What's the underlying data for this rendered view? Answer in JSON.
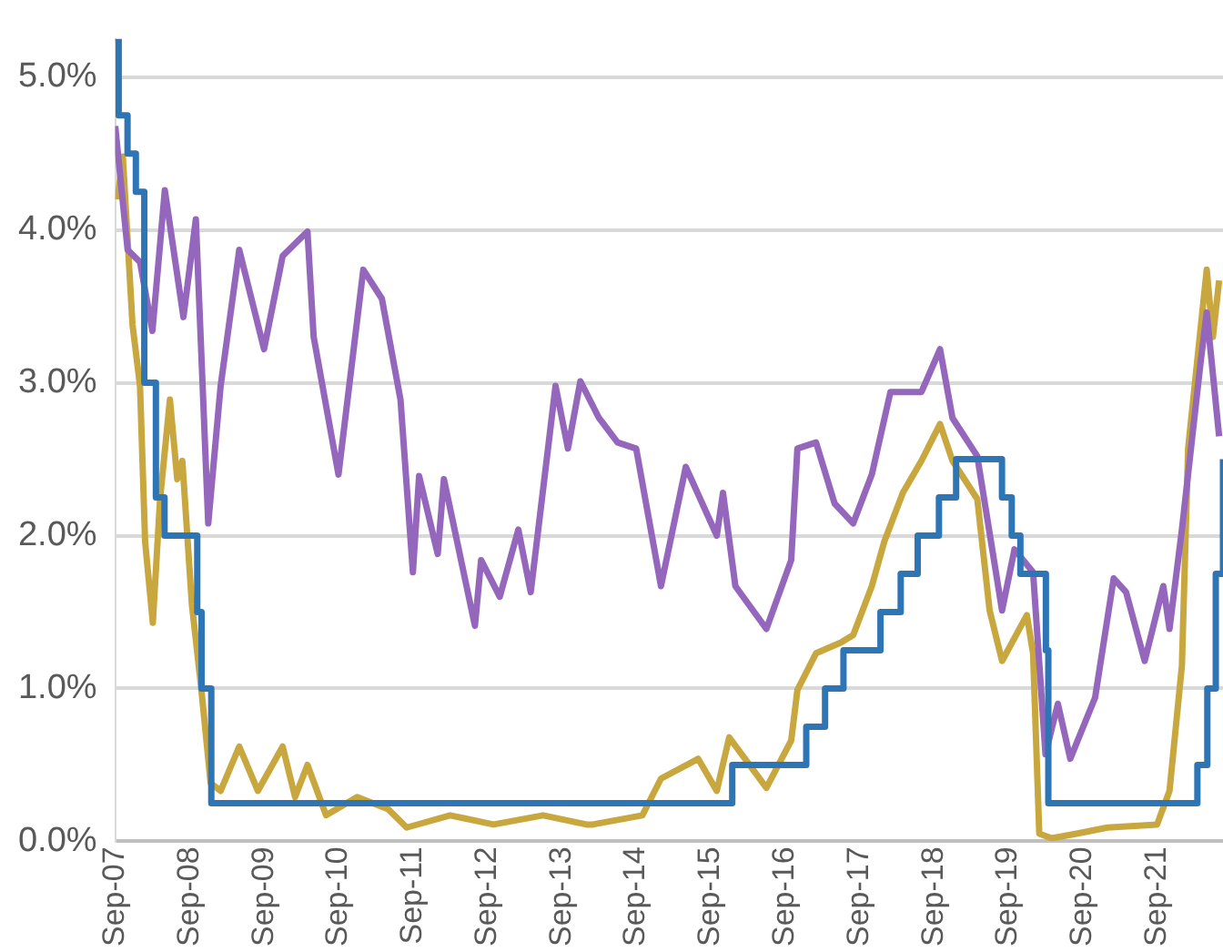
{
  "chart_data": {
    "type": "line",
    "grid": "y",
    "legend": false,
    "marker": "none",
    "line_style": "solid",
    "xlim": [
      "2007-09-01",
      "2022-07-20"
    ],
    "ylim": [
      0,
      5.25
    ],
    "xticks": [
      {
        "value": "2007-09",
        "label": "Sep-07"
      },
      {
        "value": "2008-09",
        "label": "Sep-08"
      },
      {
        "value": "2009-09",
        "label": "Sep-09"
      },
      {
        "value": "2010-09",
        "label": "Sep-10"
      },
      {
        "value": "2011-09",
        "label": "Sep-11"
      },
      {
        "value": "2012-09",
        "label": "Sep-12"
      },
      {
        "value": "2013-09",
        "label": "Sep-13"
      },
      {
        "value": "2014-09",
        "label": "Sep-14"
      },
      {
        "value": "2015-09",
        "label": "Sep-15"
      },
      {
        "value": "2016-09",
        "label": "Sep-16"
      },
      {
        "value": "2017-09",
        "label": "Sep-17"
      },
      {
        "value": "2018-09",
        "label": "Sep-18"
      },
      {
        "value": "2019-09",
        "label": "Sep-19"
      },
      {
        "value": "2020-09",
        "label": "Sep-20"
      },
      {
        "value": "2021-09",
        "label": "Sep-21"
      }
    ],
    "yticks": [
      {
        "value": 0,
        "label": "0.0%"
      },
      {
        "value": 1,
        "label": "1.0%"
      },
      {
        "value": 2,
        "label": "2.0%"
      },
      {
        "value": 3,
        "label": "3.0%"
      },
      {
        "value": 4,
        "label": "4.0%"
      },
      {
        "value": 5,
        "label": "5.0%"
      }
    ],
    "series": [
      {
        "type": "step",
        "color": "#2e75b6",
        "x": [
          "2007-09-01",
          "2007-09-18",
          "2007-10-31",
          "2007-12-11",
          "2008-01-22",
          "2008-03-18",
          "2008-04-30",
          "2008-10-08",
          "2008-10-29",
          "2008-12-16",
          "2015-12-16",
          "2016-12-14",
          "2017-03-15",
          "2017-06-14",
          "2017-12-13",
          "2018-03-21",
          "2018-06-13",
          "2018-09-26",
          "2018-12-19",
          "2019-07-31",
          "2019-09-18",
          "2019-10-30",
          "2020-03-03",
          "2020-03-15",
          "2022-03-16",
          "2022-05-04",
          "2022-06-15",
          "2022-07-20"
        ],
        "values": [
          5.25,
          4.75,
          4.5,
          4.25,
          3.0,
          2.25,
          2.0,
          1.5,
          1.0,
          0.25,
          0.5,
          0.75,
          1.0,
          1.25,
          1.5,
          1.75,
          2.0,
          2.25,
          2.5,
          2.25,
          2.0,
          1.75,
          1.25,
          0.25,
          0.5,
          1.0,
          1.75,
          2.5
        ]
      },
      {
        "type": "line",
        "color": "#9467bd",
        "x": [
          "2007-09",
          "2007-11",
          "2008-01",
          "2008-03",
          "2008-05",
          "2008-08",
          "2008-10",
          "2008-12",
          "2009-02",
          "2009-05",
          "2009-09",
          "2009-12",
          "2010-04",
          "2010-05",
          "2010-09",
          "2011-01",
          "2011-04",
          "2011-07",
          "2011-09",
          "2011-10",
          "2012-01",
          "2012-02",
          "2012-07",
          "2012-08",
          "2012-11",
          "2013-02",
          "2013-04",
          "2013-08",
          "2013-10",
          "2013-12",
          "2014-03",
          "2014-06",
          "2014-09",
          "2015-01",
          "2015-05",
          "2015-10",
          "2015-11",
          "2016-01",
          "2016-06",
          "2016-10",
          "2016-11",
          "2017-02",
          "2017-05",
          "2017-08",
          "2017-11",
          "2018-02",
          "2018-07",
          "2018-10",
          "2018-12",
          "2019-04",
          "2019-08",
          "2019-10",
          "2020-01",
          "2020-03",
          "2020-05",
          "2020-07",
          "2020-11",
          "2021-02",
          "2021-04",
          "2021-07",
          "2021-10",
          "2021-11",
          "2022-01",
          "2022-04",
          "2022-05",
          "2022-07"
        ],
        "values": [
          4.68,
          3.87,
          3.79,
          3.34,
          4.26,
          3.43,
          4.07,
          2.08,
          2.98,
          3.87,
          3.22,
          3.83,
          3.99,
          3.3,
          2.4,
          3.74,
          3.55,
          2.89,
          1.76,
          2.39,
          1.88,
          2.37,
          1.41,
          1.84,
          1.6,
          2.04,
          1.63,
          2.98,
          2.57,
          3.01,
          2.77,
          2.61,
          2.57,
          1.67,
          2.45,
          2.0,
          2.28,
          1.67,
          1.39,
          1.84,
          2.57,
          2.61,
          2.21,
          2.08,
          2.4,
          2.94,
          2.94,
          3.22,
          2.77,
          2.52,
          1.51,
          1.91,
          1.76,
          0.57,
          0.9,
          0.54,
          0.94,
          1.72,
          1.63,
          1.18,
          1.67,
          1.39,
          2.04,
          3.13,
          3.46,
          2.65
        ]
      },
      {
        "type": "line",
        "color": "#c9a73f",
        "x": [
          "2007-09-12",
          "2007-10-08",
          "2007-11-25",
          "2008-01-01",
          "2008-01-26",
          "2008-03-03",
          "2008-04-08",
          "2008-05-26",
          "2008-07-01",
          "2008-07-26",
          "2008-09-12",
          "2008-10-26",
          "2008-12-13",
          "2009-02",
          "2009-05",
          "2009-08",
          "2009-12",
          "2010-02",
          "2010-04",
          "2010-07",
          "2010-12",
          "2011-05",
          "2011-08",
          "2012-03",
          "2012-10",
          "2013-06",
          "2014-01",
          "2014-02",
          "2014-10",
          "2015-01",
          "2015-07",
          "2015-10",
          "2015-12",
          "2016-06",
          "2016-10",
          "2016-11",
          "2017-02",
          "2017-06",
          "2017-08",
          "2017-11",
          "2018-01",
          "2018-04",
          "2018-07",
          "2018-10",
          "2018-12",
          "2019-04",
          "2019-06",
          "2019-08",
          "2019-12",
          "2020-01",
          "2020-02",
          "2020-04",
          "2020-08",
          "2021-01",
          "2021-09",
          "2021-11",
          "2022-01",
          "2022-02",
          "2022-05",
          "2022-06",
          "2022-07"
        ],
        "values": [
          4.2,
          4.48,
          3.38,
          2.98,
          1.96,
          1.43,
          2.24,
          2.89,
          2.37,
          2.49,
          1.55,
          1.02,
          0.38,
          0.33,
          0.62,
          0.33,
          0.62,
          0.29,
          0.5,
          0.17,
          0.29,
          0.21,
          0.09,
          0.17,
          0.11,
          0.17,
          0.11,
          0.11,
          0.17,
          0.41,
          0.54,
          0.33,
          0.68,
          0.35,
          0.66,
          0.99,
          1.23,
          1.3,
          1.35,
          1.67,
          1.96,
          2.28,
          2.49,
          2.73,
          2.49,
          2.24,
          1.51,
          1.18,
          1.48,
          1.23,
          0.05,
          0.02,
          0.05,
          0.09,
          0.11,
          0.33,
          1.15,
          2.57,
          3.74,
          3.3,
          3.67
        ]
      }
    ]
  }
}
